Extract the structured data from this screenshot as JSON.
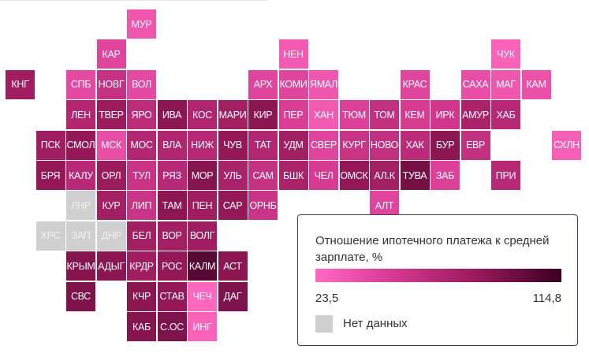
{
  "legend": {
    "title": "Отношение ипотечного платежа к средней зарплате, %",
    "min_label": "23,5",
    "max_label": "114,8",
    "min": 23.5,
    "max": 114.8,
    "no_data_label": "Нет данных",
    "colors": {
      "low": "#ff6ac1",
      "high": "#3a0020",
      "no_data": "#cfcfcf"
    }
  },
  "regions": [
    {
      "label": "МУР",
      "value": 35
    },
    {
      "label": "КАР",
      "value": 45
    },
    {
      "label": "НЕН",
      "value": 32
    },
    {
      "label": "ЧУК",
      "value": 28
    },
    {
      "label": "КНГ",
      "value": 80
    },
    {
      "label": "СПБ",
      "value": 42
    },
    {
      "label": "НОВГ",
      "value": 60
    },
    {
      "label": "ВОЛ",
      "value": 42
    },
    {
      "label": "АРХ",
      "value": 45
    },
    {
      "label": "КОМИ",
      "value": 45
    },
    {
      "label": "ЯМАЛ",
      "value": 35
    },
    {
      "label": "КРАС",
      "value": 45
    },
    {
      "label": "САХА",
      "value": 40
    },
    {
      "label": "МАГ",
      "value": 35
    },
    {
      "label": "КАМ",
      "value": 38
    },
    {
      "label": "ЛЕН",
      "value": 70
    },
    {
      "label": "ТВЕР",
      "value": 82
    },
    {
      "label": "ЯРО",
      "value": 65
    },
    {
      "label": "ИВА",
      "value": 88
    },
    {
      "label": "КОС",
      "value": 72
    },
    {
      "label": "МАРИ",
      "value": 78
    },
    {
      "label": "КИР",
      "value": 88
    },
    {
      "label": "ПЕР",
      "value": 50
    },
    {
      "label": "ХАН",
      "value": 32
    },
    {
      "label": "ТЮМ",
      "value": 48
    },
    {
      "label": "ТОМ",
      "value": 62
    },
    {
      "label": "КЕМ",
      "value": 52
    },
    {
      "label": "ИРК",
      "value": 55
    },
    {
      "label": "АМУР",
      "value": 75
    },
    {
      "label": "ХАБ",
      "value": 68
    },
    {
      "label": "ПСК",
      "value": 80
    },
    {
      "label": "СМОЛ",
      "value": 85
    },
    {
      "label": "МСК",
      "value": 40
    },
    {
      "label": "МОС",
      "value": 70
    },
    {
      "label": "ВЛА",
      "value": 72
    },
    {
      "label": "НИЖ",
      "value": 68
    },
    {
      "label": "ЧУВ",
      "value": 85
    },
    {
      "label": "ТАТ",
      "value": 70
    },
    {
      "label": "УДМ",
      "value": 78
    },
    {
      "label": "СВЕР",
      "value": 45
    },
    {
      "label": "КУРГ",
      "value": 58
    },
    {
      "label": "НОВО",
      "value": 62
    },
    {
      "label": "ХАК",
      "value": 66
    },
    {
      "label": "БУР",
      "value": 88
    },
    {
      "label": "ЕВР",
      "value": 62
    },
    {
      "label": "СХЛН",
      "value": 30
    },
    {
      "label": "БРЯ",
      "value": 85
    },
    {
      "label": "КАЛУ",
      "value": 68
    },
    {
      "label": "ОРЛ",
      "value": 82
    },
    {
      "label": "ТУЛ",
      "value": 58
    },
    {
      "label": "РЯЗ",
      "value": 68
    },
    {
      "label": "МОР",
      "value": 90
    },
    {
      "label": "УЛЬ",
      "value": 75
    },
    {
      "label": "САМ",
      "value": 60
    },
    {
      "label": "БШК",
      "value": 75
    },
    {
      "label": "ЧЕЛ",
      "value": 52
    },
    {
      "label": "ОМСК",
      "value": 85
    },
    {
      "label": "АЛ.К",
      "value": 78
    },
    {
      "label": "ТУВА",
      "value": 95
    },
    {
      "label": "ЗАБ",
      "value": 48
    },
    {
      "label": "ПРИ",
      "value": 68
    },
    {
      "label": "ЛНР",
      "value": null
    },
    {
      "label": "КУР",
      "value": 78
    },
    {
      "label": "ЛИП",
      "value": 58
    },
    {
      "label": "ТАМ",
      "value": 88
    },
    {
      "label": "ПЕН",
      "value": 80
    },
    {
      "label": "САР",
      "value": 85
    },
    {
      "label": "ОРНБ",
      "value": 58
    },
    {
      "label": "АЛТ",
      "value": 45
    },
    {
      "label": "ХРС",
      "value": null
    },
    {
      "label": "ЗАП",
      "value": null
    },
    {
      "label": "ДНР",
      "value": null
    },
    {
      "label": "БЕЛ",
      "value": 78
    },
    {
      "label": "ВОР",
      "value": 78
    },
    {
      "label": "ВОЛГ",
      "value": 80
    },
    {
      "label": "КРЫМ",
      "value": 90
    },
    {
      "label": "АДЫГ",
      "value": 88
    },
    {
      "label": "КРДР",
      "value": 80
    },
    {
      "label": "РОС",
      "value": 85
    },
    {
      "label": "КАЛМ",
      "value": 105
    },
    {
      "label": "АСТ",
      "value": 88
    },
    {
      "label": "СВС",
      "value": 92
    },
    {
      "label": "КЧР",
      "value": 88
    },
    {
      "label": "СТАВ",
      "value": 85
    },
    {
      "label": "ЧЕЧ",
      "value": 25
    },
    {
      "label": "ДАГ",
      "value": 92
    },
    {
      "label": "КАБ",
      "value": 90
    },
    {
      "label": "С.ОС",
      "value": 92
    },
    {
      "label": "ИНГ",
      "value": 28
    }
  ]
}
